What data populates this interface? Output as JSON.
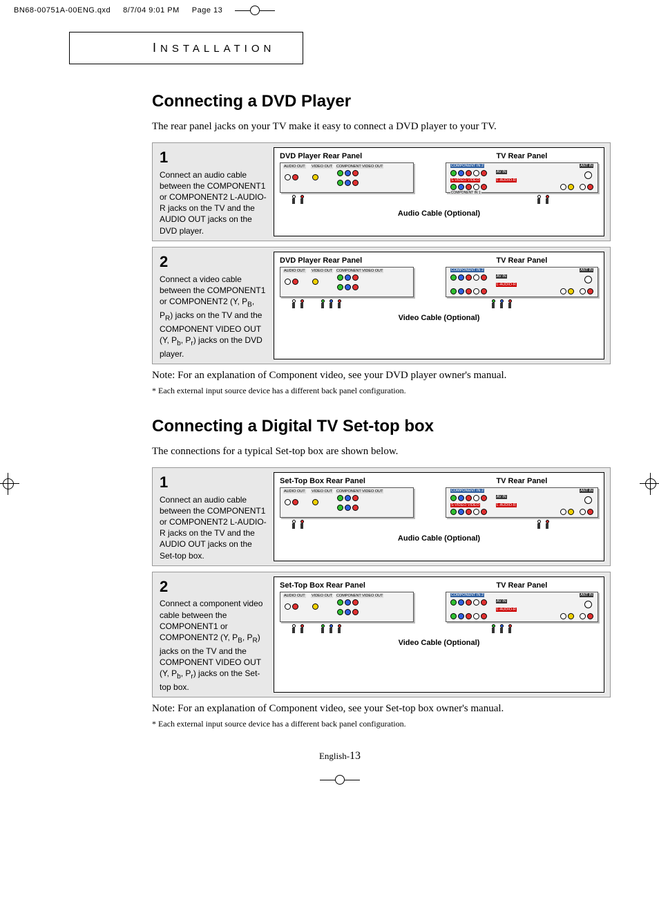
{
  "header": {
    "filename": "BN68-00751A-00ENG.qxd",
    "datetime": "8/7/04 9:01 PM",
    "pageref": "Page 13"
  },
  "section_tab": "NSTALLATION",
  "section_tab_initial": "I",
  "dvd": {
    "title": "Connecting a DVD Player",
    "intro": "The rear panel jacks on your TV make it easy to connect a DVD player to your TV.",
    "step1": {
      "num": "1",
      "text": "Connect an audio cable between the COMPONENT1 or COMPONENT2 L-AUDIO-R jacks on the TV and the AUDIO OUT jacks on the DVD player.",
      "left_label": "DVD Player Rear Panel",
      "right_label": "TV Rear Panel",
      "caption": "Audio Cable (Optional)"
    },
    "step2": {
      "num": "2",
      "text_html": "Connect a video cable between the COMPONENT1 or COMPONENT2 (Y, P<sub>B</sub>, P<sub>R</sub>) jacks on the TV and the COMPONENT VIDEO OUT (Y, P<sub>b</sub>, P<sub>r</sub>) jacks on the DVD player.",
      "left_label": "DVD Player Rear Panel",
      "right_label": "TV Rear Panel",
      "caption": "Video Cable (Optional)"
    },
    "note": "Note: For an explanation of Component video, see your DVD player owner's manual.",
    "footnote": "*  Each external input source device has a different back panel configuration."
  },
  "stb": {
    "title": "Connecting a Digital TV Set-top box",
    "intro": "The connections for a typical Set-top box are shown below.",
    "step1": {
      "num": "1",
      "text": "Connect an audio cable between the COMPONENT1 or COMPONENT2 L-AUDIO-R jacks on the TV and the AUDIO OUT jacks on the Set-top box.",
      "left_label": "Set-Top Box Rear Panel",
      "right_label": "TV Rear Panel",
      "caption": "Audio Cable (Optional)"
    },
    "step2": {
      "num": "2",
      "text_html": "Connect a component video cable between the COMPONENT1 or COMPONENT2 (Y, P<sub>B</sub>, P<sub>R</sub>) jacks on the TV and the COMPONENT VIDEO OUT (Y, P<sub>b</sub>, P<sub>r</sub>) jacks on the Set-top box.",
      "left_label": "Set-Top Box Rear Panel",
      "right_label": "TV Rear Panel",
      "caption": "Video Cable (Optional)"
    },
    "note": "Note: For an explanation of Component video, see your Set-top box owner's manual.",
    "footnote": "*  Each external input source device has a different back panel configuration."
  },
  "footer": {
    "lang": "English-",
    "page": "13"
  },
  "diagram_labels": {
    "audio_out": "AUDIO OUT",
    "video_out": "VIDEO OUT",
    "component_video_out": "COMPONENT VIDEO OUT",
    "component_in1": "COMPONENT IN 1",
    "component_in2": "COMPONENT IN 2",
    "av_in": "AV IN",
    "svideo": "S-VIDEO VIDEO",
    "laudio_r": "L-AUDIO-R",
    "ant_in": "ANT IN"
  },
  "colors": {
    "red": "#e03030",
    "green": "#30c030",
    "blue": "#3060e0",
    "yellow": "#f0d000",
    "white": "#ffffff",
    "panel_bg": "#f2f2f2",
    "step_bg": "#e8e8e8"
  }
}
